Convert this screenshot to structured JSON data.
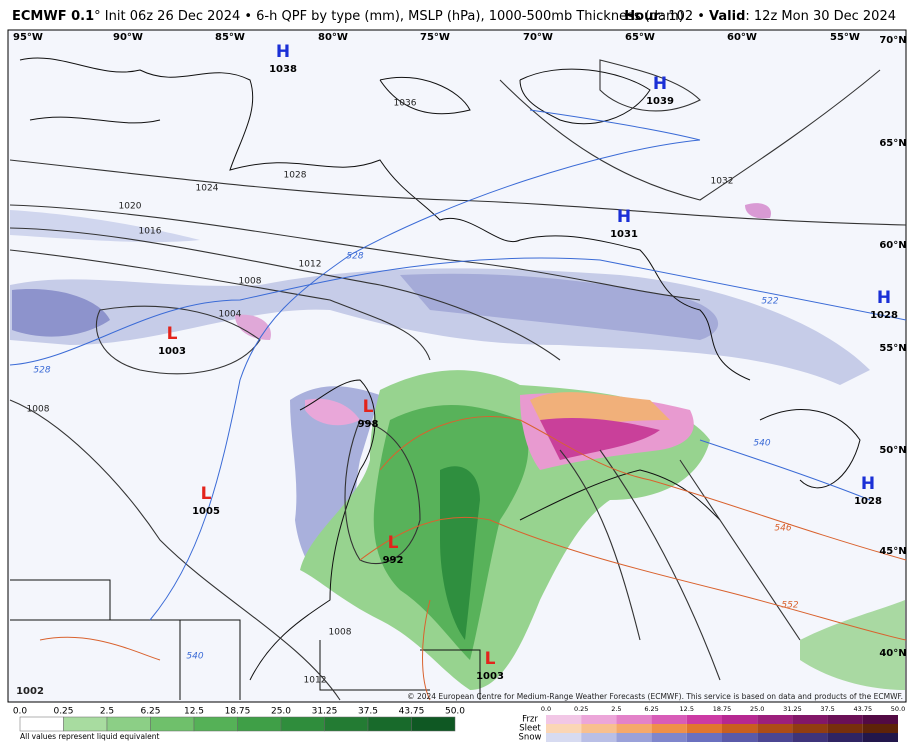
{
  "header": {
    "model": "ECMWF 0.1",
    "description": "° Init 06z 26 Dec 2024 • 6-h QPF by type (mm), MSLP (hPa), 1000-500mb Thickness (dam)",
    "hour_label": "Hour",
    "hour": ": 102 • ",
    "valid_label": "Valid",
    "valid": ": 12z Mon 30 Dec 2024"
  },
  "map": {
    "longitudes": [
      "95°W",
      "90°W",
      "85°W",
      "80°W",
      "75°W",
      "70°W",
      "65°W",
      "60°W",
      "55°W"
    ],
    "latitudes": [
      "70°N",
      "65°N",
      "60°N",
      "55°N",
      "50°N",
      "45°N",
      "40°N"
    ],
    "centers": [
      {
        "letter": "H",
        "pressure": "1038"
      },
      {
        "letter": "H",
        "pressure": "1039"
      },
      {
        "letter": "H",
        "pressure": "1031"
      },
      {
        "letter": "H",
        "pressure": "1028"
      },
      {
        "letter": "H",
        "pressure": "1028"
      },
      {
        "letter": "L",
        "pressure": "1003"
      },
      {
        "letter": "L",
        "pressure": "998"
      },
      {
        "letter": "L",
        "pressure": "1005"
      },
      {
        "letter": "L",
        "pressure": "992"
      },
      {
        "letter": "L",
        "pressure": "1003"
      }
    ],
    "isobar_labels": [
      "1036",
      "1032",
      "1028",
      "1024",
      "1020",
      "1016",
      "1012",
      "1008",
      "1004",
      "1008",
      "1008",
      "1012",
      "1002"
    ],
    "thickness_labels": [
      "528",
      "522",
      "528",
      "540",
      "546",
      "552",
      "540"
    ],
    "copyright": "© 2024 European Centre for Medium-Range Weather Forecasts (ECMWF). This service is based on data and products of the ECMWF."
  },
  "legend": {
    "rain_values": [
      "0.0",
      "0.25",
      "2.5",
      "6.25",
      "12.5",
      "18.75",
      "25.0",
      "31.25",
      "37.5",
      "43.75",
      "50.0"
    ],
    "note": "All values represent liquid equivalent",
    "types": [
      "Frzr",
      "Sleet",
      "Snow"
    ],
    "winter_values": [
      "0.0",
      "0.25",
      "2.5",
      "6.25",
      "12.5",
      "18.75",
      "25.0",
      "31.25",
      "37.5",
      "43.75",
      "50.0"
    ]
  }
}
